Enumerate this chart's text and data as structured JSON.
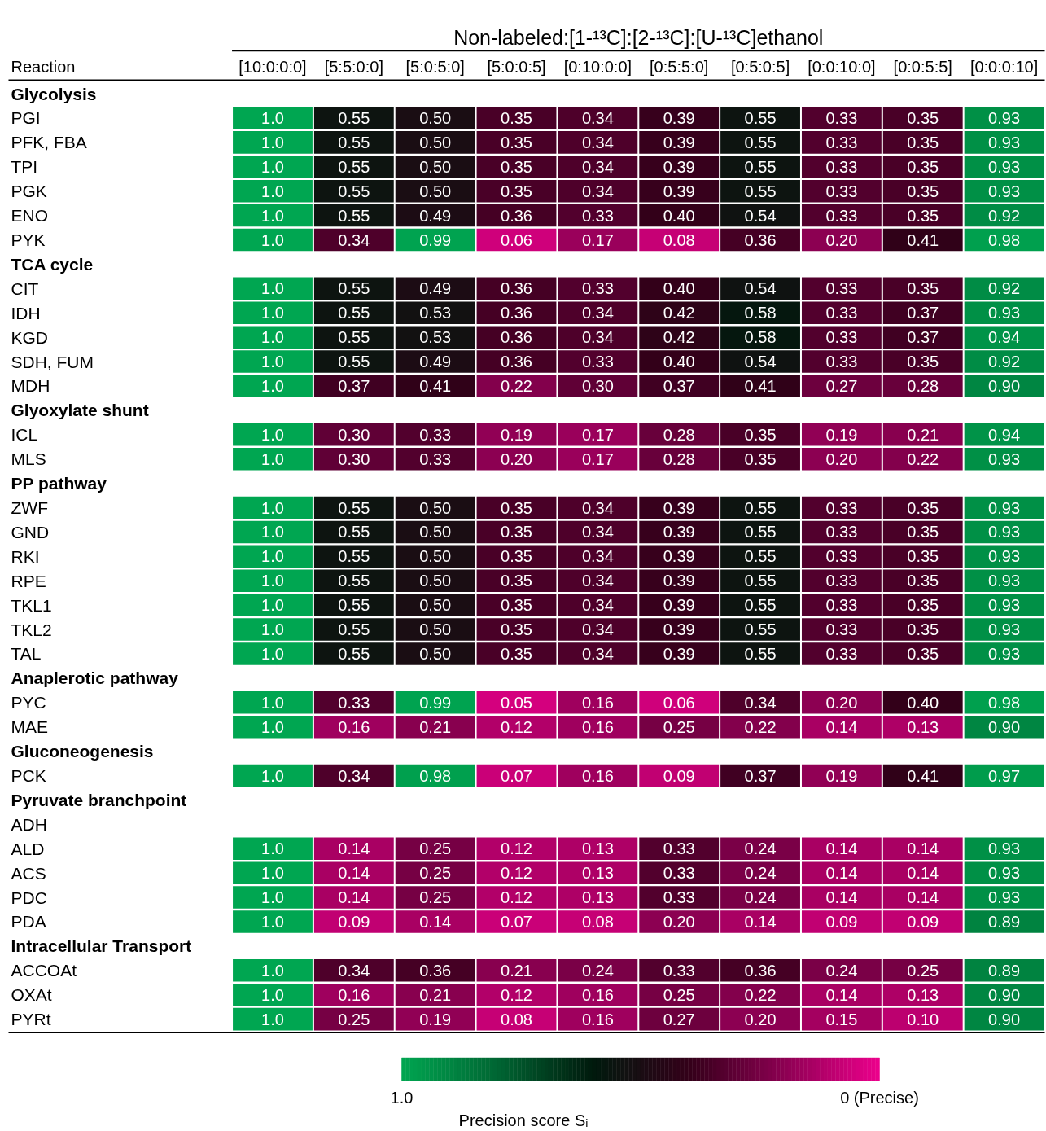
{
  "chart_data": {
    "type": "heatmap",
    "title": "Non-labeled:[1-¹³C]:[2-¹³C]:[U-¹³C]ethanol",
    "ylabel": "Reaction",
    "categories": [
      "[10:0:0:0]",
      "[5:5:0:0]",
      "[5:0:5:0]",
      "[5:0:0:5]",
      "[0:10:0:0]",
      "[0:5:5:0]",
      "[0:5:0:5]",
      "[0:0:10:0]",
      "[0:0:5:5]",
      "[0:0:0:10]"
    ],
    "y_categories": [
      "Glycolysis",
      "PGI",
      "PFK, FBA",
      "TPI",
      "PGK",
      "ENO",
      "PYK",
      "TCA cycle",
      "CIT",
      "IDH",
      "KGD",
      "SDH, FUM",
      "MDH",
      "Glyoxylate shunt",
      "ICL",
      "MLS",
      "PP pathway",
      "ZWF",
      "GND",
      "RKI",
      "RPE",
      "TKL1",
      "TKL2",
      "TAL",
      "Anaplerotic pathway",
      "PYC",
      "MAE",
      "Gluconeogenesis",
      "PCK",
      "Pyruvate branchpoint",
      "ADH",
      "ALD",
      "ACS",
      "PDC",
      "PDA",
      "Intracellular Transport",
      "ACCOAt",
      "OXAt",
      "PYRt"
    ],
    "cells": [
      [
        null,
        null,
        null,
        null,
        null,
        null,
        null,
        null,
        null,
        null
      ],
      [
        1.0,
        0.55,
        0.5,
        0.35,
        0.34,
        0.39,
        0.55,
        0.33,
        0.35,
        0.93
      ],
      [
        1.0,
        0.55,
        0.5,
        0.35,
        0.34,
        0.39,
        0.55,
        0.33,
        0.35,
        0.93
      ],
      [
        1.0,
        0.55,
        0.5,
        0.35,
        0.34,
        0.39,
        0.55,
        0.33,
        0.35,
        0.93
      ],
      [
        1.0,
        0.55,
        0.5,
        0.35,
        0.34,
        0.39,
        0.55,
        0.33,
        0.35,
        0.93
      ],
      [
        1.0,
        0.55,
        0.49,
        0.36,
        0.33,
        0.4,
        0.54,
        0.33,
        0.35,
        0.92
      ],
      [
        1.0,
        0.34,
        0.99,
        0.06,
        0.17,
        0.08,
        0.36,
        0.2,
        0.41,
        0.98
      ],
      [
        null,
        null,
        null,
        null,
        null,
        null,
        null,
        null,
        null,
        null
      ],
      [
        1.0,
        0.55,
        0.49,
        0.36,
        0.33,
        0.4,
        0.54,
        0.33,
        0.35,
        0.92
      ],
      [
        1.0,
        0.55,
        0.53,
        0.36,
        0.34,
        0.42,
        0.58,
        0.33,
        0.37,
        0.93
      ],
      [
        1.0,
        0.55,
        0.53,
        0.36,
        0.34,
        0.42,
        0.58,
        0.33,
        0.37,
        0.94
      ],
      [
        1.0,
        0.55,
        0.49,
        0.36,
        0.33,
        0.4,
        0.54,
        0.33,
        0.35,
        0.92
      ],
      [
        1.0,
        0.37,
        0.41,
        0.22,
        0.3,
        0.37,
        0.41,
        0.27,
        0.28,
        0.9
      ],
      [
        null,
        null,
        null,
        null,
        null,
        null,
        null,
        null,
        null,
        null
      ],
      [
        1.0,
        0.3,
        0.33,
        0.19,
        0.17,
        0.28,
        0.35,
        0.19,
        0.21,
        0.94
      ],
      [
        1.0,
        0.3,
        0.33,
        0.2,
        0.17,
        0.28,
        0.35,
        0.2,
        0.22,
        0.93
      ],
      [
        null,
        null,
        null,
        null,
        null,
        null,
        null,
        null,
        null,
        null
      ],
      [
        1.0,
        0.55,
        0.5,
        0.35,
        0.34,
        0.39,
        0.55,
        0.33,
        0.35,
        0.93
      ],
      [
        1.0,
        0.55,
        0.5,
        0.35,
        0.34,
        0.39,
        0.55,
        0.33,
        0.35,
        0.93
      ],
      [
        1.0,
        0.55,
        0.5,
        0.35,
        0.34,
        0.39,
        0.55,
        0.33,
        0.35,
        0.93
      ],
      [
        1.0,
        0.55,
        0.5,
        0.35,
        0.34,
        0.39,
        0.55,
        0.33,
        0.35,
        0.93
      ],
      [
        1.0,
        0.55,
        0.5,
        0.35,
        0.34,
        0.39,
        0.55,
        0.33,
        0.35,
        0.93
      ],
      [
        1.0,
        0.55,
        0.5,
        0.35,
        0.34,
        0.39,
        0.55,
        0.33,
        0.35,
        0.93
      ],
      [
        1.0,
        0.55,
        0.5,
        0.35,
        0.34,
        0.39,
        0.55,
        0.33,
        0.35,
        0.93
      ],
      [
        null,
        null,
        null,
        null,
        null,
        null,
        null,
        null,
        null,
        null
      ],
      [
        1.0,
        0.33,
        0.99,
        0.05,
        0.16,
        0.06,
        0.34,
        0.2,
        0.4,
        0.98
      ],
      [
        1.0,
        0.16,
        0.21,
        0.12,
        0.16,
        0.25,
        0.22,
        0.14,
        0.13,
        0.9
      ],
      [
        null,
        null,
        null,
        null,
        null,
        null,
        null,
        null,
        null,
        null
      ],
      [
        1.0,
        0.34,
        0.98,
        0.07,
        0.16,
        0.09,
        0.37,
        0.19,
        0.41,
        0.97
      ],
      [
        null,
        null,
        null,
        null,
        null,
        null,
        null,
        null,
        null,
        null
      ],
      [
        null,
        null,
        null,
        null,
        null,
        null,
        null,
        null,
        null,
        null
      ],
      [
        1.0,
        0.14,
        0.25,
        0.12,
        0.13,
        0.33,
        0.24,
        0.14,
        0.14,
        0.93
      ],
      [
        1.0,
        0.14,
        0.25,
        0.12,
        0.13,
        0.33,
        0.24,
        0.14,
        0.14,
        0.93
      ],
      [
        1.0,
        0.14,
        0.25,
        0.12,
        0.13,
        0.33,
        0.24,
        0.14,
        0.14,
        0.93
      ],
      [
        1.0,
        0.09,
        0.14,
        0.07,
        0.08,
        0.2,
        0.14,
        0.09,
        0.09,
        0.89
      ],
      [
        null,
        null,
        null,
        null,
        null,
        null,
        null,
        null,
        null,
        null
      ],
      [
        1.0,
        0.34,
        0.36,
        0.21,
        0.24,
        0.33,
        0.36,
        0.24,
        0.25,
        0.89
      ],
      [
        1.0,
        0.16,
        0.21,
        0.12,
        0.16,
        0.25,
        0.22,
        0.14,
        0.13,
        0.9
      ],
      [
        1.0,
        0.25,
        0.19,
        0.08,
        0.16,
        0.27,
        0.2,
        0.15,
        0.1,
        0.9
      ]
    ],
    "cell_labels": [
      [
        null,
        null,
        null,
        null,
        null,
        null,
        null,
        null,
        null,
        null
      ],
      [
        "1.0",
        "0.55",
        "0.50",
        "0.35",
        "0.34",
        "0.39",
        "0.55",
        "0.33",
        "0.35",
        "0.93"
      ],
      [
        "1.0",
        "0.55",
        "0.50",
        "0.35",
        "0.34",
        "0.39",
        "0.55",
        "0.33",
        "0.35",
        "0.93"
      ],
      [
        "1.0",
        "0.55",
        "0.50",
        "0.35",
        "0.34",
        "0.39",
        "0.55",
        "0.33",
        "0.35",
        "0.93"
      ],
      [
        "1.0",
        "0.55",
        "0.50",
        "0.35",
        "0.34",
        "0.39",
        "0.55",
        "0.33",
        "0.35",
        "0.93"
      ],
      [
        "1.0",
        "0.55",
        "0.49",
        "0.36",
        "0.33",
        "0.40",
        "0.54",
        "0.33",
        "0.35",
        "0.92"
      ],
      [
        "1.0",
        "0.34",
        "0.99",
        "0.06",
        "0.17",
        "0.08",
        "0.36",
        "0.20",
        "0.41",
        "0.98"
      ],
      [
        null,
        null,
        null,
        null,
        null,
        null,
        null,
        null,
        null,
        null
      ],
      [
        "1.0",
        "0.55",
        "0.49",
        "0.36",
        "0.33",
        "0.40",
        "0.54",
        "0.33",
        "0.35",
        "0.92"
      ],
      [
        "1.0",
        "0.55",
        "0.53",
        "0.36",
        "0.34",
        "0.42",
        "0.58",
        "0.33",
        "0.37",
        "0.93"
      ],
      [
        "1.0",
        "0.55",
        "0.53",
        "0.36",
        "0.34",
        "0.42",
        "0.58",
        "0.33",
        "0.37",
        "0.94"
      ],
      [
        "1.0",
        "0.55",
        "0.49",
        "0.36",
        "0.33",
        "0.40",
        "0.54",
        "0.33",
        "0.35",
        "0.92"
      ],
      [
        "1.0",
        "0.37",
        "0.41",
        "0.22",
        "0.30",
        "0.37",
        "0.41",
        "0.27",
        "0.28",
        "0.90"
      ],
      [
        null,
        null,
        null,
        null,
        null,
        null,
        null,
        null,
        null,
        null
      ],
      [
        "1.0",
        "0.30",
        "0.33",
        "0.19",
        "0.17",
        "0.28",
        "0.35",
        "0.19",
        "0.21",
        "0.94"
      ],
      [
        "1.0",
        "0.30",
        "0.33",
        "0.20",
        "0.17",
        "0.28",
        "0.35",
        "0.20",
        "0.22",
        "0.93"
      ],
      [
        null,
        null,
        null,
        null,
        null,
        null,
        null,
        null,
        null,
        null
      ],
      [
        "1.0",
        "0.55",
        "0.50",
        "0.35",
        "0.34",
        "0.39",
        "0.55",
        "0.33",
        "0.35",
        "0.93"
      ],
      [
        "1.0",
        "0.55",
        "0.50",
        "0.35",
        "0.34",
        "0.39",
        "0.55",
        "0.33",
        "0.35",
        "0.93"
      ],
      [
        "1.0",
        "0.55",
        "0.50",
        "0.35",
        "0.34",
        "0.39",
        "0.55",
        "0.33",
        "0.35",
        "0.93"
      ],
      [
        "1.0",
        "0.55",
        "0.50",
        "0.35",
        "0.34",
        "0.39",
        "0.55",
        "0.33",
        "0.35",
        "0.93"
      ],
      [
        "1.0",
        "0.55",
        "0.50",
        "0.35",
        "0.34",
        "0.39",
        "0.55",
        "0.33",
        "0.35",
        "0.93"
      ],
      [
        "1.0",
        "0.55",
        "0.50",
        "0.35",
        "0.34",
        "0.39",
        "0.55",
        "0.33",
        "0.35",
        "0.93"
      ],
      [
        "1.0",
        "0.55",
        "0.50",
        "0.35",
        "0.34",
        "0.39",
        "0.55",
        "0.33",
        "0.35",
        "0.93"
      ],
      [
        null,
        null,
        null,
        null,
        null,
        null,
        null,
        null,
        null,
        null
      ],
      [
        "1.0",
        "0.33",
        "0.99",
        "0.05",
        "0.16",
        "0.06",
        "0.34",
        "0.20",
        "0.40",
        "0.98"
      ],
      [
        "1.0",
        "0.16",
        "0.21",
        "0.12",
        "0.16",
        "0.25",
        "0.22",
        "0.14",
        "0.13",
        "0.90"
      ],
      [
        null,
        null,
        null,
        null,
        null,
        null,
        null,
        null,
        null,
        null
      ],
      [
        "1.0",
        "0.34",
        "0.98",
        "0.07",
        "0.16",
        "0.09",
        "0.37",
        "0.19",
        "0.41",
        "0.97"
      ],
      [
        null,
        null,
        null,
        null,
        null,
        null,
        null,
        null,
        null,
        null
      ],
      [
        null,
        null,
        null,
        null,
        null,
        null,
        null,
        null,
        null,
        null
      ],
      [
        "1.0",
        "0.14",
        "0.25",
        "0.12",
        "0.13",
        "0.33",
        "0.24",
        "0.14",
        "0.14",
        "0.93"
      ],
      [
        "1.0",
        "0.14",
        "0.25",
        "0.12",
        "0.13",
        "0.33",
        "0.24",
        "0.14",
        "0.14",
        "0.93"
      ],
      [
        "1.0",
        "0.14",
        "0.25",
        "0.12",
        "0.13",
        "0.33",
        "0.24",
        "0.14",
        "0.14",
        "0.93"
      ],
      [
        "1.0",
        "0.09",
        "0.14",
        "0.07",
        "0.08",
        "0.20",
        "0.14",
        "0.09",
        "0.09",
        "0.89"
      ],
      [
        null,
        null,
        null,
        null,
        null,
        null,
        null,
        null,
        null,
        null
      ],
      [
        "1.0",
        "0.34",
        "0.36",
        "0.21",
        "0.24",
        "0.33",
        "0.36",
        "0.24",
        "0.25",
        "0.89"
      ],
      [
        "1.0",
        "0.16",
        "0.21",
        "0.12",
        "0.16",
        "0.25",
        "0.22",
        "0.14",
        "0.13",
        "0.90"
      ],
      [
        "1.0",
        "0.25",
        "0.19",
        "0.08",
        "0.16",
        "0.27",
        "0.20",
        "0.15",
        "0.10",
        "0.90"
      ]
    ],
    "colors": [
      "#00a651",
      "#006633",
      "#001a0d",
      "#330019",
      "#8c0052",
      "#ec008c"
    ],
    "clim": [
      1,
      0
    ],
    "cticks": [
      {
        "value": 1,
        "label": "1.0"
      },
      {
        "value": 0,
        "label": "0 (Precise)"
      }
    ],
    "clabel": "Precision score Sᵢ"
  }
}
